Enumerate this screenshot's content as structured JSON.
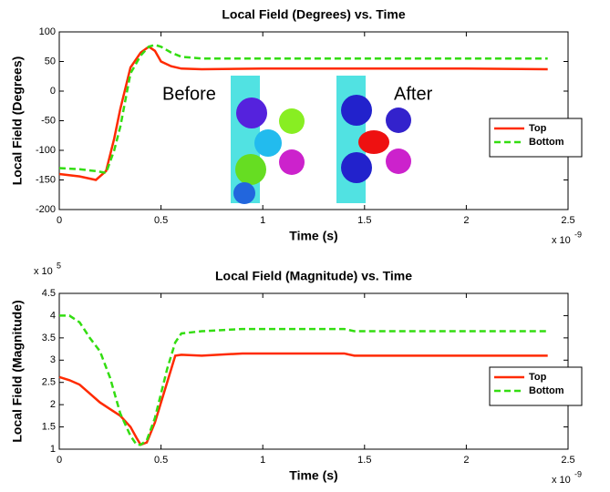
{
  "chart_data": [
    {
      "type": "line",
      "title": "Local Field (Degrees) vs. Time",
      "x_label": "Time (s)",
      "y_label": "Local Field (Degrees)",
      "x_multiplier": "x 10",
      "x_exponent": "-9",
      "annotations": [
        "Before",
        "After"
      ],
      "x": [
        0,
        0.1,
        0.18,
        0.23,
        0.27,
        0.3,
        0.35,
        0.4,
        0.44,
        0.47,
        0.5,
        0.55,
        0.6,
        0.7,
        1.0,
        1.4,
        1.5,
        2.0,
        2.4
      ],
      "series": [
        {
          "name": "Top",
          "color": "#ff2a00",
          "dash": false,
          "values": [
            -140,
            -144,
            -150,
            -135,
            -80,
            -30,
            40,
            65,
            75,
            68,
            50,
            42,
            38,
            37,
            38,
            38,
            38,
            38,
            37
          ]
        },
        {
          "name": "Bottom",
          "color": "#33dd11",
          "dash": true,
          "values": [
            -130,
            -132,
            -135,
            -138,
            -100,
            -60,
            30,
            60,
            75,
            78,
            75,
            65,
            58,
            55,
            55,
            55,
            55,
            55,
            55
          ]
        }
      ],
      "xlim": [
        0,
        2.5
      ],
      "xticks": [
        0,
        0.5,
        1,
        1.5,
        2,
        2.5
      ],
      "ylim": [
        -200,
        100
      ],
      "yticks": [
        -200,
        -150,
        -100,
        -50,
        0,
        50,
        100
      ],
      "legend": "right",
      "grid": false
    },
    {
      "type": "line",
      "title": "Local Field (Magnitude) vs. Time",
      "x_label": "Time (s)",
      "y_label": "Local Field (Magnitude)",
      "x_multiplier": "x 10",
      "x_exponent": "-9",
      "y_multiplier": "x 10",
      "y_exponent": "5",
      "x": [
        0,
        0.05,
        0.1,
        0.15,
        0.2,
        0.25,
        0.3,
        0.35,
        0.38,
        0.4,
        0.43,
        0.47,
        0.53,
        0.57,
        0.6,
        0.7,
        0.9,
        1.4,
        1.45,
        2.0,
        2.4
      ],
      "series": [
        {
          "name": "Top",
          "color": "#ff2a00",
          "dash": false,
          "values": [
            2.62,
            2.55,
            2.45,
            2.25,
            2.05,
            1.9,
            1.75,
            1.5,
            1.25,
            1.1,
            1.15,
            1.6,
            2.5,
            3.1,
            3.12,
            3.1,
            3.15,
            3.15,
            3.1,
            3.1,
            3.1
          ]
        },
        {
          "name": "Bottom",
          "color": "#33dd11",
          "dash": true,
          "values": [
            4.0,
            4.0,
            3.85,
            3.5,
            3.2,
            2.6,
            1.8,
            1.3,
            1.1,
            1.1,
            1.2,
            1.7,
            2.8,
            3.4,
            3.6,
            3.65,
            3.7,
            3.7,
            3.65,
            3.65,
            3.65
          ]
        }
      ],
      "xlim": [
        0,
        2.5
      ],
      "xticks": [
        0,
        0.5,
        1,
        1.5,
        2,
        2.5
      ],
      "ylim": [
        1,
        4.5
      ],
      "yticks": [
        1,
        1.5,
        2,
        2.5,
        3,
        3.5,
        4,
        4.5
      ],
      "legend": "right",
      "grid": false
    }
  ]
}
